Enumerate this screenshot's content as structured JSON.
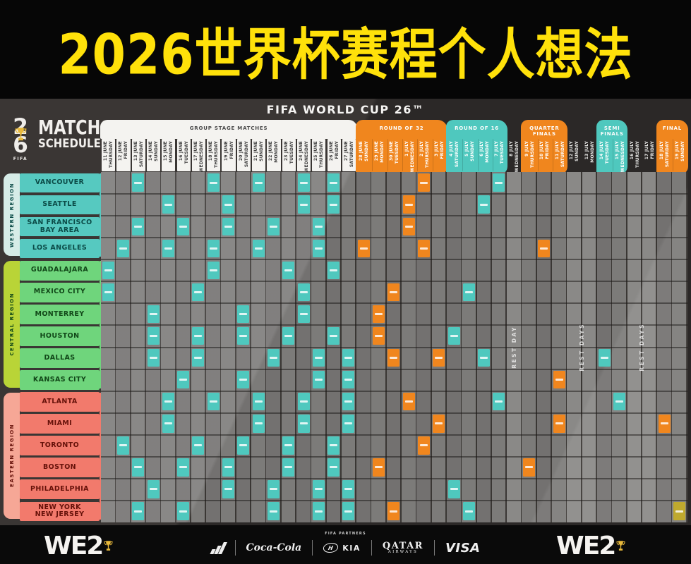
{
  "title": "2026世界杯赛程个人想法",
  "poster": {
    "brand": "FIFA WORLD CUP 26™",
    "logo": {
      "two": "2",
      "six": "6",
      "fifa": "FIFA",
      "line1": "MATCH",
      "line2": "SCHEDULE"
    },
    "sections": [
      {
        "id": "group",
        "label": "GROUP STAGE MATCHES",
        "type": "white",
        "start": 0,
        "count": 17
      },
      {
        "id": "r32",
        "label": "ROUND OF 32",
        "type": "orange",
        "start": 17,
        "count": 6,
        "stub": 21
      },
      {
        "id": "r16",
        "label": "ROUND OF 16",
        "type": "teal",
        "start": 23,
        "count": 4,
        "stub": 26
      },
      {
        "id": "rest1",
        "label": "",
        "type": "rest",
        "start": 27,
        "count": 1
      },
      {
        "id": "qf",
        "label": "QUARTER FINALS",
        "type": "orange",
        "start": 28,
        "count": 3
      },
      {
        "id": "rest2",
        "label": "",
        "type": "rest",
        "start": 31,
        "count": 2
      },
      {
        "id": "sf",
        "label": "SEMI FINALS",
        "type": "teal",
        "start": 33,
        "count": 2
      },
      {
        "id": "rest3",
        "label": "",
        "type": "rest",
        "start": 35,
        "count": 2
      },
      {
        "id": "final",
        "label": "FINAL",
        "type": "orange",
        "start": 37,
        "count": 2
      }
    ],
    "columns": [
      {
        "day": "THURSDAY",
        "date": "11 JUNE"
      },
      {
        "day": "FRIDAY",
        "date": "12 JUNE"
      },
      {
        "day": "SATURDAY",
        "date": "13 JUNE"
      },
      {
        "day": "SUNDAY",
        "date": "14 JUNE"
      },
      {
        "day": "MONDAY",
        "date": "15 JUNE"
      },
      {
        "day": "TUESDAY",
        "date": "16 JUNE"
      },
      {
        "day": "WEDNESDAY",
        "date": "17 JUNE"
      },
      {
        "day": "THURSDAY",
        "date": "18 JUNE"
      },
      {
        "day": "FRIDAY",
        "date": "19 JUNE"
      },
      {
        "day": "SATURDAY",
        "date": "20 JUNE"
      },
      {
        "day": "SUNDAY",
        "date": "21 JUNE"
      },
      {
        "day": "MONDAY",
        "date": "22 JUNE"
      },
      {
        "day": "TUESDAY",
        "date": "23 JUNE"
      },
      {
        "day": "WEDNESDAY",
        "date": "24 JUNE"
      },
      {
        "day": "THURSDAY",
        "date": "25 JUNE"
      },
      {
        "day": "FRIDAY",
        "date": "26 JUNE"
      },
      {
        "day": "SATURDAY",
        "date": "27 JUNE"
      },
      {
        "day": "SUNDAY",
        "date": "28 JUNE"
      },
      {
        "day": "MONDAY",
        "date": "29 JUNE"
      },
      {
        "day": "TUESDAY",
        "date": "30 JUNE"
      },
      {
        "day": "WEDNESDAY",
        "date": "1 JULY"
      },
      {
        "day": "THURSDAY",
        "date": "2 JULY"
      },
      {
        "day": "FRIDAY",
        "date": "3 JULY"
      },
      {
        "day": "SATURDAY",
        "date": "4 JULY"
      },
      {
        "day": "SUNDAY",
        "date": "5 JULY"
      },
      {
        "day": "MONDAY",
        "date": "6 JULY"
      },
      {
        "day": "TUESDAY",
        "date": "7 JULY"
      },
      {
        "day": "WEDNESDAY",
        "date": "8 JULY"
      },
      {
        "day": "THURSDAY",
        "date": "9 JULY"
      },
      {
        "day": "FRIDAY",
        "date": "10 JULY"
      },
      {
        "day": "SATURDAY",
        "date": "11 JULY"
      },
      {
        "day": "SUNDAY",
        "date": "12 JULY"
      },
      {
        "day": "MONDAY",
        "date": "13 JULY"
      },
      {
        "day": "TUESDAY",
        "date": "14 JULY"
      },
      {
        "day": "WEDNESDAY",
        "date": "15 JULY"
      },
      {
        "day": "THURSDAY",
        "date": "16 JULY"
      },
      {
        "day": "FRIDAY",
        "date": "17 JULY"
      },
      {
        "day": "SATURDAY",
        "date": "18 JULY"
      },
      {
        "day": "SUNDAY",
        "date": "19 JULY"
      }
    ],
    "rest_labels": [
      {
        "start": 27,
        "span": 1,
        "text": "REST DAY"
      },
      {
        "start": 31,
        "span": 2,
        "text": "REST DAYS"
      },
      {
        "start": 35,
        "span": 2,
        "text": "REST DAYS"
      }
    ],
    "regions": [
      {
        "name": "WESTERN REGION",
        "key": "west",
        "cities": [
          {
            "lines": [
              "VANCOUVER"
            ],
            "cells": [
              [
                2,
                "t"
              ],
              [
                7,
                "t"
              ],
              [
                10,
                "t"
              ],
              [
                13,
                "t"
              ],
              [
                15,
                "t"
              ],
              [
                21,
                "o"
              ],
              [
                26,
                "t"
              ]
            ]
          },
          {
            "lines": [
              "SEATTLE"
            ],
            "cells": [
              [
                4,
                "t"
              ],
              [
                8,
                "t"
              ],
              [
                13,
                "t"
              ],
              [
                15,
                "t"
              ],
              [
                20,
                "o"
              ],
              [
                25,
                "t"
              ]
            ]
          },
          {
            "lines": [
              "SAN FRANCISCO",
              "BAY AREA"
            ],
            "cells": [
              [
                2,
                "t"
              ],
              [
                5,
                "t"
              ],
              [
                8,
                "t"
              ],
              [
                11,
                "t"
              ],
              [
                14,
                "t"
              ],
              [
                20,
                "o"
              ]
            ]
          },
          {
            "lines": [
              "LOS ANGELES"
            ],
            "cells": [
              [
                1,
                "t"
              ],
              [
                4,
                "t"
              ],
              [
                7,
                "t"
              ],
              [
                10,
                "t"
              ],
              [
                14,
                "t"
              ],
              [
                17,
                "o"
              ],
              [
                21,
                "o"
              ],
              [
                29,
                "o"
              ]
            ]
          }
        ]
      },
      {
        "name": "CENTRAL REGION",
        "key": "central",
        "cities": [
          {
            "lines": [
              "GUADALAJARA"
            ],
            "cells": [
              [
                0,
                "t"
              ],
              [
                7,
                "t"
              ],
              [
                12,
                "t"
              ],
              [
                15,
                "t"
              ]
            ]
          },
          {
            "lines": [
              "MEXICO CITY"
            ],
            "cells": [
              [
                0,
                "t"
              ],
              [
                6,
                "t"
              ],
              [
                13,
                "t"
              ],
              [
                19,
                "o"
              ],
              [
                24,
                "t"
              ]
            ]
          },
          {
            "lines": [
              "MONTERREY"
            ],
            "cells": [
              [
                3,
                "t"
              ],
              [
                9,
                "t"
              ],
              [
                13,
                "t"
              ],
              [
                18,
                "o"
              ]
            ]
          },
          {
            "lines": [
              "HOUSTON"
            ],
            "cells": [
              [
                3,
                "t"
              ],
              [
                6,
                "t"
              ],
              [
                9,
                "t"
              ],
              [
                12,
                "t"
              ],
              [
                15,
                "t"
              ],
              [
                18,
                "o"
              ],
              [
                23,
                "t"
              ]
            ]
          },
          {
            "lines": [
              "DALLAS"
            ],
            "cells": [
              [
                3,
                "t"
              ],
              [
                6,
                "t"
              ],
              [
                11,
                "t"
              ],
              [
                14,
                "t"
              ],
              [
                16,
                "t"
              ],
              [
                19,
                "o"
              ],
              [
                22,
                "o"
              ],
              [
                25,
                "t"
              ],
              [
                33,
                "t"
              ]
            ]
          },
          {
            "lines": [
              "KANSAS CITY"
            ],
            "cells": [
              [
                5,
                "t"
              ],
              [
                9,
                "t"
              ],
              [
                14,
                "t"
              ],
              [
                16,
                "t"
              ],
              [
                30,
                "o"
              ]
            ]
          }
        ]
      },
      {
        "name": "EASTERN REGION",
        "key": "east",
        "cities": [
          {
            "lines": [
              "ATLANTA"
            ],
            "cells": [
              [
                4,
                "t"
              ],
              [
                7,
                "t"
              ],
              [
                10,
                "t"
              ],
              [
                13,
                "t"
              ],
              [
                16,
                "t"
              ],
              [
                20,
                "o"
              ],
              [
                26,
                "t"
              ],
              [
                34,
                "t"
              ]
            ]
          },
          {
            "lines": [
              "MIAMI"
            ],
            "cells": [
              [
                4,
                "t"
              ],
              [
                10,
                "t"
              ],
              [
                13,
                "t"
              ],
              [
                16,
                "t"
              ],
              [
                22,
                "o"
              ],
              [
                30,
                "o"
              ],
              [
                37,
                "o"
              ]
            ]
          },
          {
            "lines": [
              "TORONTO"
            ],
            "cells": [
              [
                1,
                "t"
              ],
              [
                6,
                "t"
              ],
              [
                9,
                "t"
              ],
              [
                12,
                "t"
              ],
              [
                15,
                "t"
              ],
              [
                21,
                "o"
              ]
            ]
          },
          {
            "lines": [
              "BOSTON"
            ],
            "cells": [
              [
                2,
                "t"
              ],
              [
                5,
                "t"
              ],
              [
                8,
                "t"
              ],
              [
                12,
                "t"
              ],
              [
                15,
                "t"
              ],
              [
                18,
                "o"
              ],
              [
                28,
                "o"
              ]
            ]
          },
          {
            "lines": [
              "PHILADELPHIA"
            ],
            "cells": [
              [
                3,
                "t"
              ],
              [
                8,
                "t"
              ],
              [
                11,
                "t"
              ],
              [
                14,
                "t"
              ],
              [
                16,
                "t"
              ],
              [
                23,
                "t"
              ]
            ]
          },
          {
            "lines": [
              "NEW YORK",
              "NEW JERSEY"
            ],
            "cells": [
              [
                2,
                "t"
              ],
              [
                5,
                "t"
              ],
              [
                11,
                "t"
              ],
              [
                14,
                "t"
              ],
              [
                16,
                "t"
              ],
              [
                19,
                "o"
              ],
              [
                24,
                "t"
              ],
              [
                38,
                "g"
              ]
            ]
          }
        ]
      }
    ]
  },
  "footer": {
    "partners_label": "FIFA PARTNERS",
    "we_logo": "WE2",
    "sponsors": [
      "adidas",
      "Coca-Cola",
      "HYUNDAI",
      "KIA",
      "QATAR",
      "AIRWAYS",
      "VISA"
    ]
  },
  "colors": {
    "title_yellow": "#FFE10A",
    "teal": "#4FC8BE",
    "orange": "#F0861E",
    "gold": "#BFA92E",
    "white_col": "#F4F3F0",
    "regions": {
      "west": {
        "cell": "#56C9C0",
        "tab": "#D6ECE7",
        "text": "#0B4B47"
      },
      "central": {
        "cell": "#6FD57C",
        "tab": "#B9D437",
        "text": "#114718"
      },
      "east": {
        "cell": "#F27A6C",
        "tab": "#F6A796",
        "text": "#651109"
      }
    }
  }
}
